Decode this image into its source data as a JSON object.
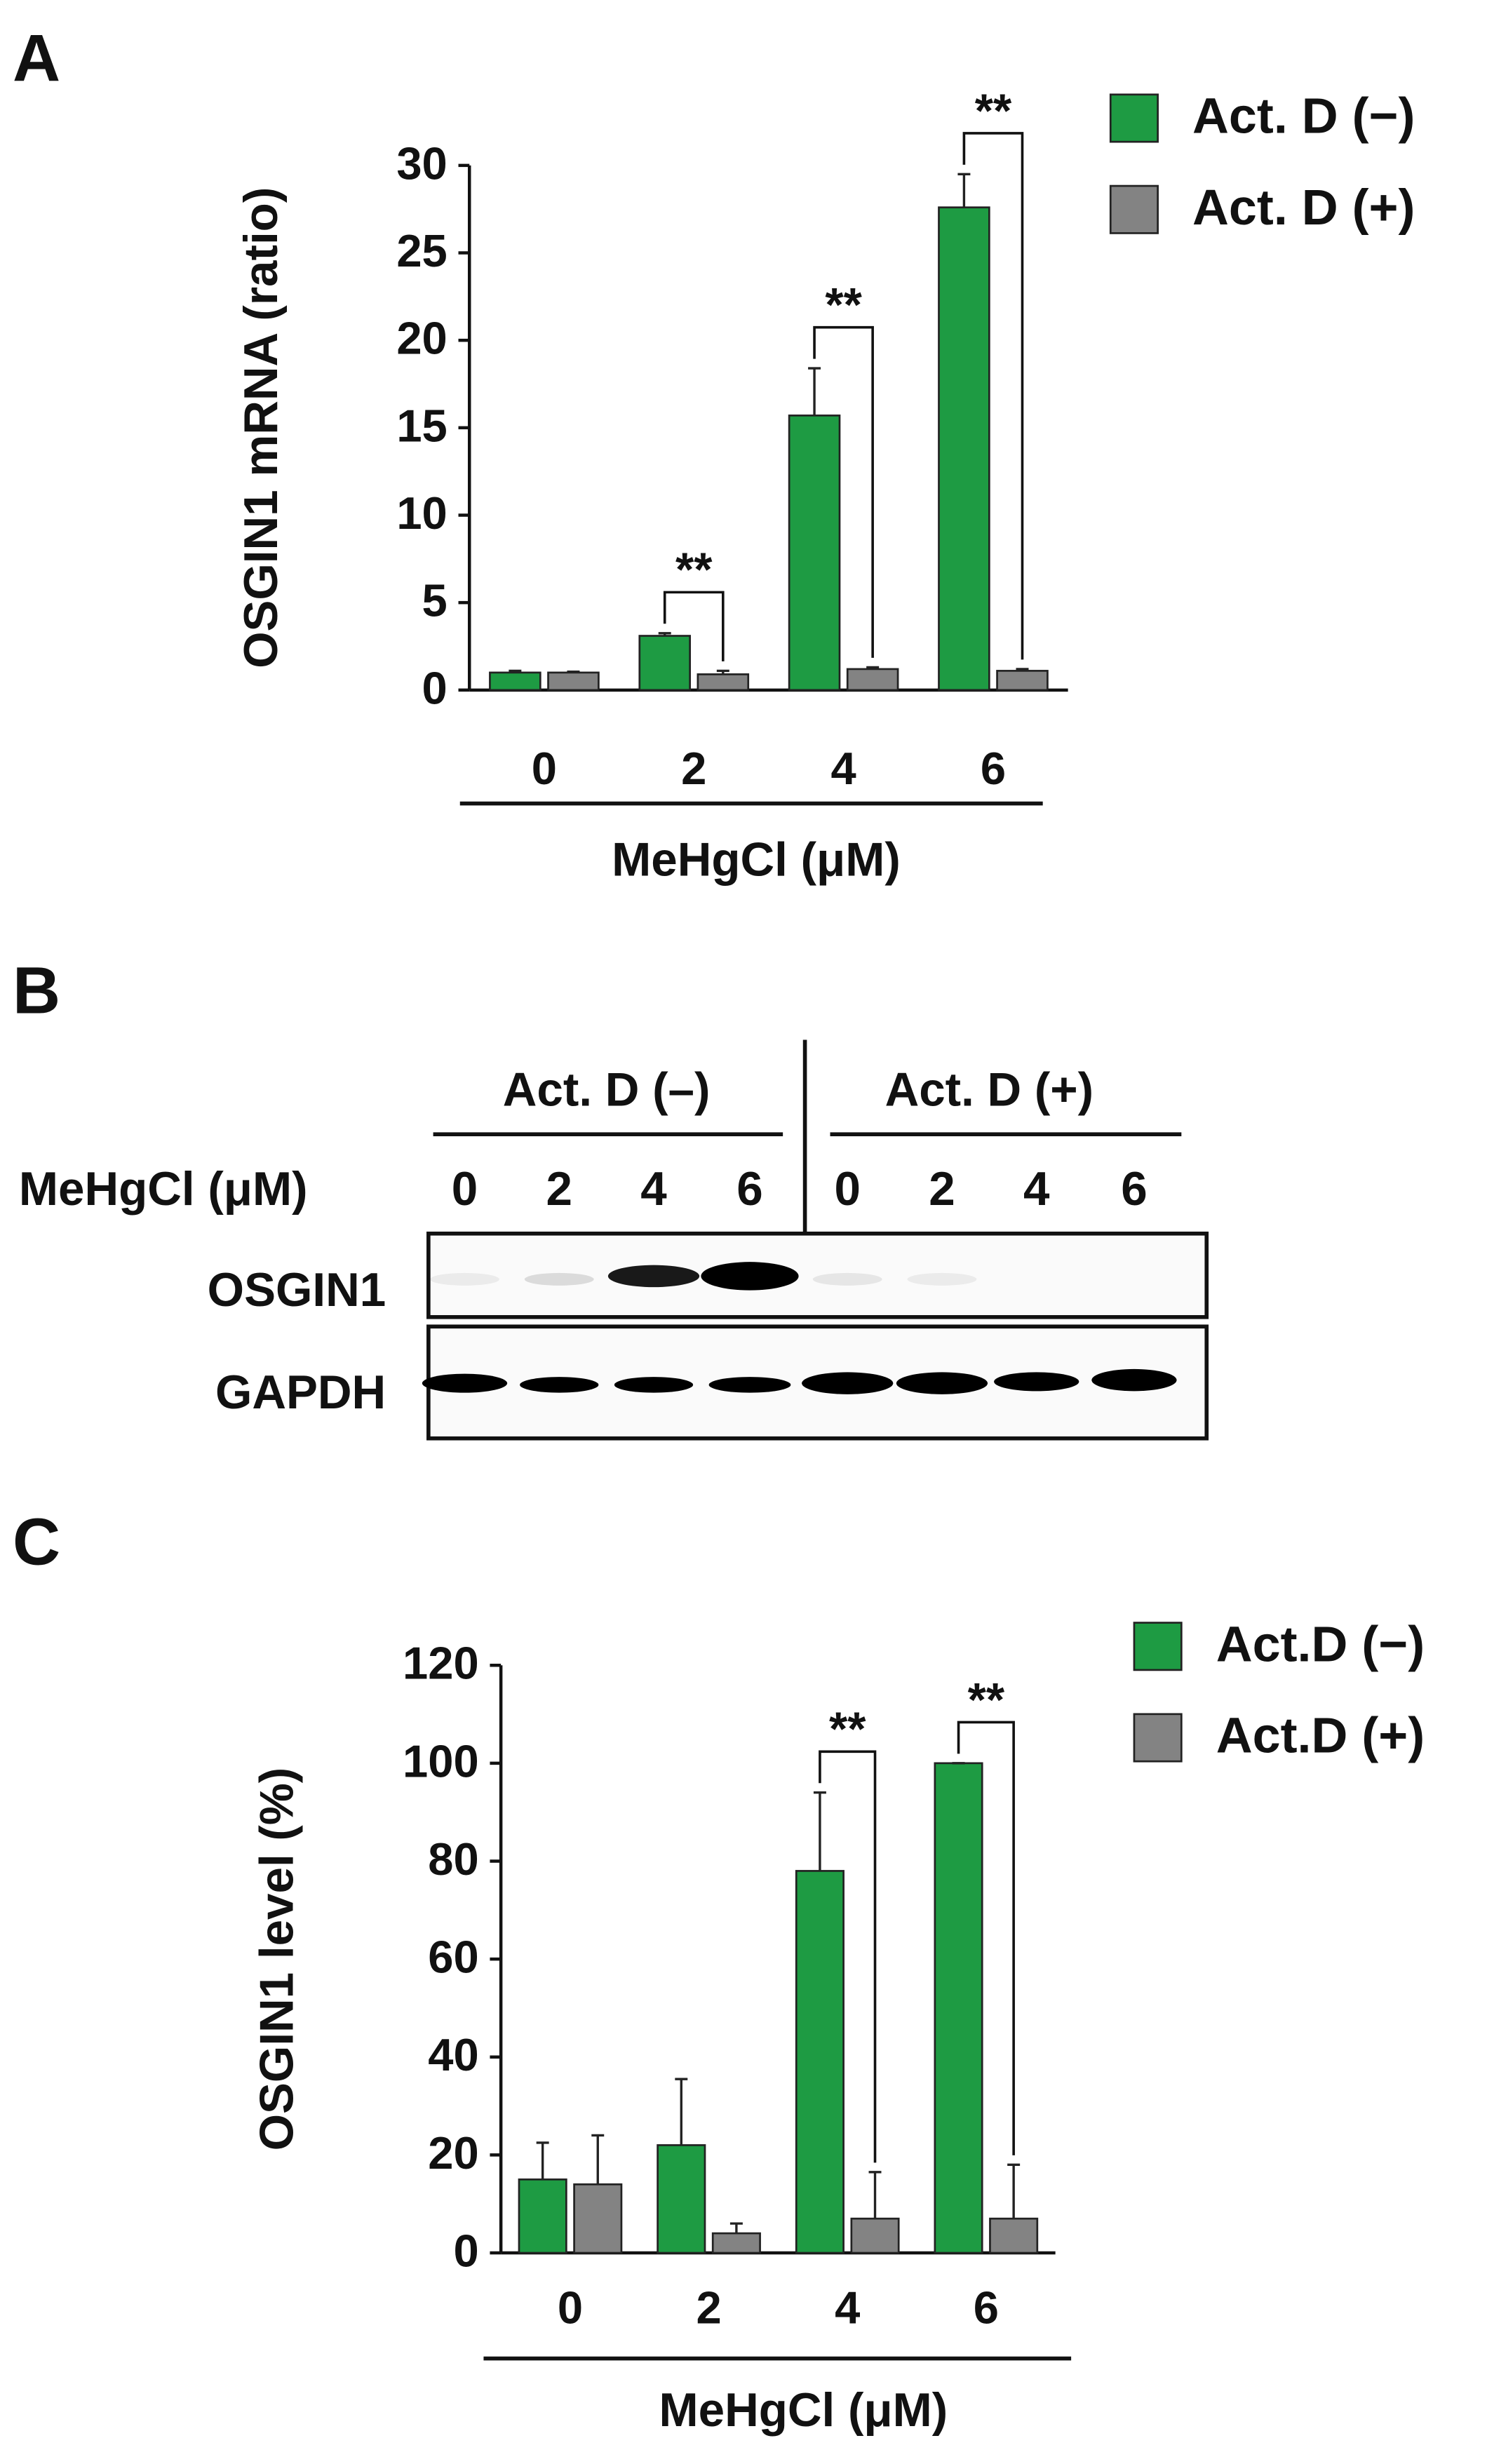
{
  "chart_data": [
    {
      "type": "bar",
      "panel": "A",
      "ylabel": "OSGIN1 mRNA (ratio)",
      "xlabel": "MeHgCl (μM)",
      "categories": [
        "0",
        "2",
        "4",
        "6"
      ],
      "series": [
        {
          "name": "Act. D (−)",
          "color": "#1e9b43",
          "values": [
            1.0,
            3.1,
            15.7,
            27.6
          ],
          "errors": [
            0.1,
            0.15,
            2.7,
            1.9
          ]
        },
        {
          "name": "Act. D (+)",
          "color": "#838383",
          "values": [
            1.0,
            0.9,
            1.2,
            1.1
          ],
          "errors": [
            0.05,
            0.2,
            0.1,
            0.1
          ]
        }
      ],
      "significance": [
        null,
        "**",
        "**",
        "**"
      ],
      "ylim": [
        0,
        30
      ],
      "yticks": [
        0,
        5,
        10,
        15,
        20,
        25,
        30
      ],
      "legend": "top-right"
    },
    {
      "type": "bar",
      "panel": "C",
      "ylabel": "OSGIN1 level (%)",
      "xlabel": "MeHgCl (μM)",
      "categories": [
        "0",
        "2",
        "4",
        "6"
      ],
      "series": [
        {
          "name": "Act.D (−)",
          "color": "#1e9b43",
          "values": [
            15,
            22,
            78,
            100
          ],
          "errors": [
            7.5,
            13.5,
            16,
            0
          ]
        },
        {
          "name": "Act.D (+)",
          "color": "#838383",
          "values": [
            14,
            4,
            7,
            7
          ],
          "errors": [
            10,
            2,
            9.5,
            11
          ]
        }
      ],
      "significance": [
        null,
        null,
        "**",
        "**"
      ],
      "ylim": [
        0,
        120
      ],
      "yticks": [
        0,
        20,
        40,
        60,
        80,
        100,
        120
      ],
      "legend": "top-right"
    }
  ],
  "blot": {
    "panel": "B",
    "groups": [
      "Act. D (–)",
      "Act. D (+)"
    ],
    "row_label": "MeHgCl (μM)",
    "lanes": [
      "0",
      "2",
      "4",
      "6",
      "0",
      "2",
      "4",
      "6"
    ],
    "bands": [
      "OSGIN1",
      "GAPDH"
    ]
  }
}
